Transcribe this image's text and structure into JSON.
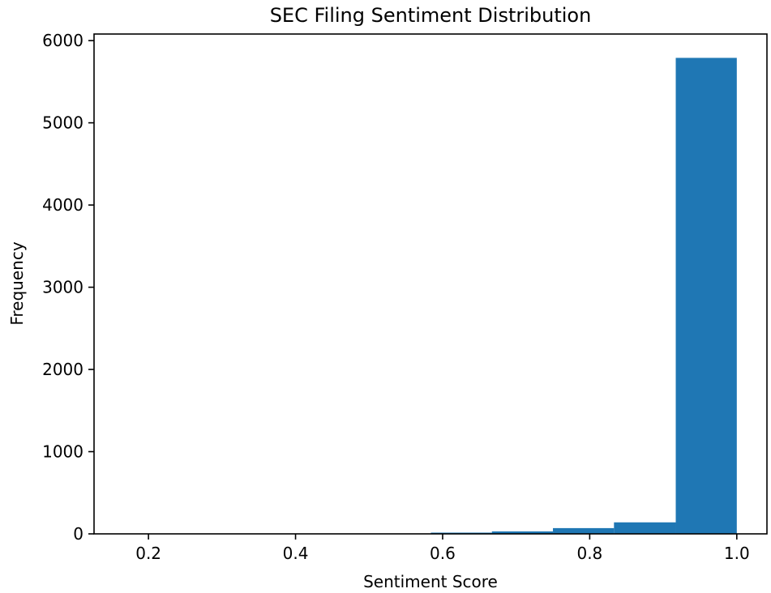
{
  "chart_data": {
    "type": "bar",
    "subtype": "histogram",
    "title": "SEC Filing Sentiment Distribution",
    "xlabel": "Sentiment Score",
    "ylabel": "Frequency",
    "xlim": [
      0.126,
      1.041
    ],
    "ylim": [
      0,
      6080
    ],
    "x_ticks": [
      0.2,
      0.4,
      0.6,
      0.8,
      1.0
    ],
    "x_tick_labels": [
      "0.2",
      "0.4",
      "0.6",
      "0.8",
      "1.0"
    ],
    "y_ticks": [
      0,
      1000,
      2000,
      3000,
      4000,
      5000,
      6000
    ],
    "y_tick_labels": [
      "0",
      "1000",
      "2000",
      "3000",
      "4000",
      "5000",
      "6000"
    ],
    "bins": [
      {
        "start": 0.168,
        "end": 0.251,
        "count": 0
      },
      {
        "start": 0.251,
        "end": 0.334,
        "count": 0
      },
      {
        "start": 0.334,
        "end": 0.418,
        "count": 3
      },
      {
        "start": 0.418,
        "end": 0.501,
        "count": 2
      },
      {
        "start": 0.501,
        "end": 0.584,
        "count": 4
      },
      {
        "start": 0.584,
        "end": 0.667,
        "count": 15
      },
      {
        "start": 0.667,
        "end": 0.75,
        "count": 30
      },
      {
        "start": 0.75,
        "end": 0.833,
        "count": 70
      },
      {
        "start": 0.833,
        "end": 0.917,
        "count": 140
      },
      {
        "start": 0.917,
        "end": 1.0,
        "count": 5790
      }
    ],
    "bar_color": "#1f77b4",
    "grid": false,
    "legend": "none"
  }
}
